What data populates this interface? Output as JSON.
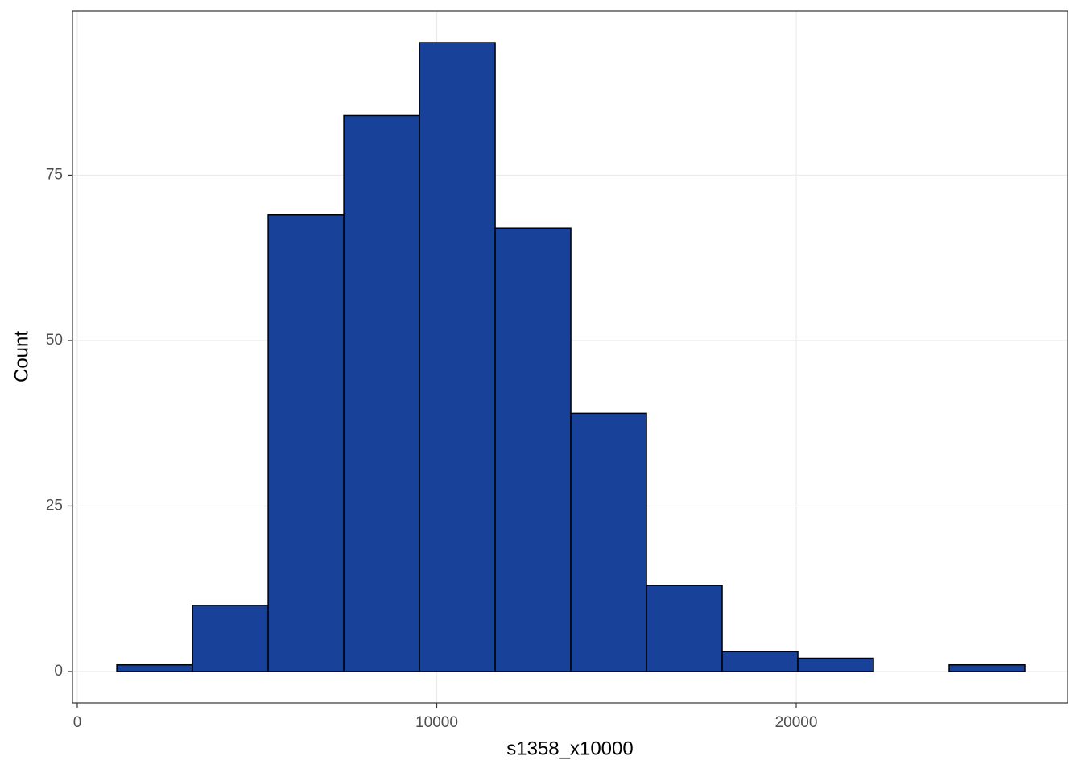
{
  "chart_data": {
    "type": "histogram",
    "xlabel": "s1358_x10000",
    "ylabel": "Count",
    "bins": [
      1100,
      3205,
      5310,
      7415,
      9520,
      11625,
      13730,
      15835,
      17940,
      20045,
      22150,
      24255,
      26360
    ],
    "values": [
      1,
      10,
      69,
      84,
      95,
      67,
      39,
      13,
      3,
      2,
      0,
      1
    ],
    "color": "#18429a",
    "edgecolor": "#000000",
    "xlim": [
      -134,
      27547
    ],
    "ylim": [
      -4.75,
      99.75
    ],
    "xticks": [
      0,
      10000,
      20000
    ],
    "yticks": [
      0,
      25,
      50,
      75
    ],
    "grid": true
  }
}
